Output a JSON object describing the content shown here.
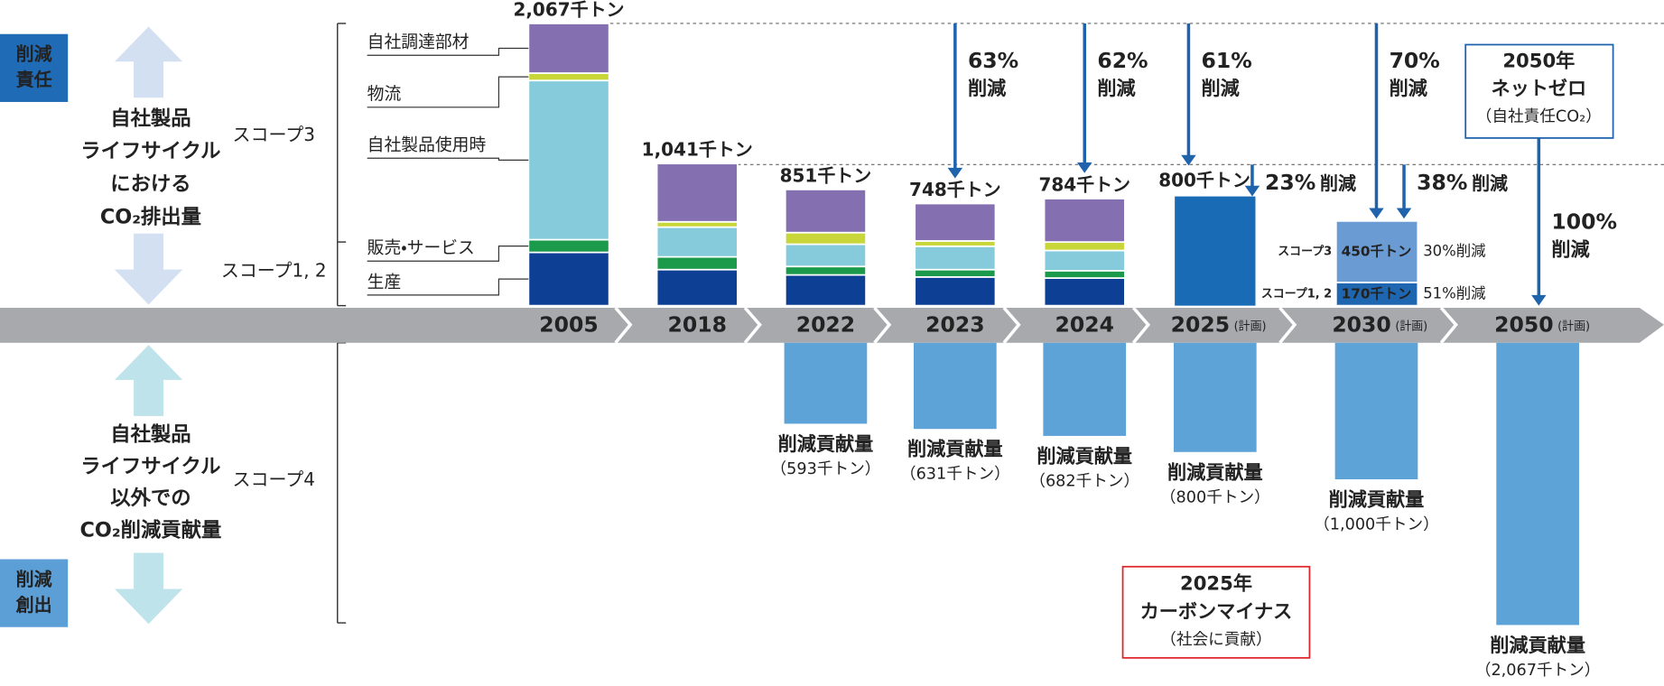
{
  "left": {
    "top_box": [
      "削減",
      "責任"
    ],
    "top_text": [
      "自社製品",
      "ライフサイクル",
      "における",
      "CO₂排出量"
    ],
    "bottom_box": [
      "削減",
      "創出"
    ],
    "bottom_text": [
      "自社製品",
      "ライフサイクル",
      "以外での",
      "CO₂削減貢献量"
    ],
    "scopes": [
      "スコープ3",
      "スコープ1, 2",
      "スコープ4"
    ]
  },
  "chart_data": {
    "type": "stacked-diverging-bar",
    "categories": [
      "2005",
      "2018",
      "2022",
      "2023",
      "2024",
      "2025",
      "2030",
      "2050"
    ],
    "category_notes": [
      null,
      null,
      null,
      null,
      null,
      "(計画)",
      "(計画)",
      "(計画)"
    ],
    "series": [
      {
        "name": "生産",
        "color": "#0d3f94",
        "values": [
          390,
          264,
          225,
          210,
          202,
          null,
          null,
          null
        ]
      },
      {
        "name": "販売・サービス",
        "color": "#1a9a4a",
        "values": [
          93,
          93,
          62,
          54,
          54,
          null,
          null,
          null
        ]
      },
      {
        "name": "自社製品使用時",
        "color": "#86cbdc",
        "values": [
          1166,
          218,
          163,
          171,
          148,
          null,
          null,
          null
        ]
      },
      {
        "name": "物流",
        "color": "#c8d63a",
        "values": [
          54,
          39,
          85,
          39,
          62,
          null,
          null,
          null
        ]
      },
      {
        "name": "自社調達部材",
        "color": "#8470b0",
        "values": [
          364,
          427,
          316,
          274,
          318,
          null,
          null,
          null
        ]
      }
    ],
    "totals": [
      "2,067千トン",
      "1,041千トン",
      "851千トン",
      "748千トン",
      "784千トン",
      null,
      null,
      null
    ],
    "plan": {
      "color": "#1a6bb5",
      "values": [
        null,
        null,
        null,
        null,
        null,
        800,
        null,
        null
      ],
      "value_labels": [
        null,
        null,
        null,
        null,
        null,
        "800千トン",
        null,
        null
      ]
    },
    "scope_breakdown": [
      {
        "name": "スコープ1, 2",
        "color": "#1f66b0",
        "value": 170,
        "value_label": "170千トン",
        "reduction": "51%削減"
      },
      {
        "name": "スコープ3",
        "color": "#6b9bd3",
        "value": 450,
        "value_label": "450千トン",
        "reduction": "30%削減"
      }
    ],
    "reductions_from_2005": [
      {
        "label": "63%",
        "text": "削減"
      },
      {
        "label": "62%",
        "text": "削減"
      },
      {
        "label": "61%",
        "text": "削減"
      },
      {
        "label": "70%",
        "text": "削減"
      },
      {
        "label": "100%",
        "text": "削減"
      }
    ],
    "reductions_from_2018": [
      {
        "label": "23%",
        "text": "削減"
      },
      {
        "label": "38%",
        "text": "削減"
      }
    ],
    "contribution": {
      "title": "削減貢献量",
      "color": "#5ea3d8",
      "values": [
        null,
        null,
        593,
        631,
        682,
        800,
        1000,
        2067
      ],
      "value_labels": [
        null,
        null,
        "（593千トン）",
        "（631千トン）",
        "（682千トン）",
        "（800千トン）",
        "（1,000千トン）",
        "（2,067千トン）"
      ]
    },
    "goal_2050": [
      "2050年",
      "ネットゼロ",
      "（自社責任CO₂）"
    ],
    "goal_2025": [
      "2025年",
      "カーボンマイナス",
      "（社会に貢献）"
    ]
  }
}
